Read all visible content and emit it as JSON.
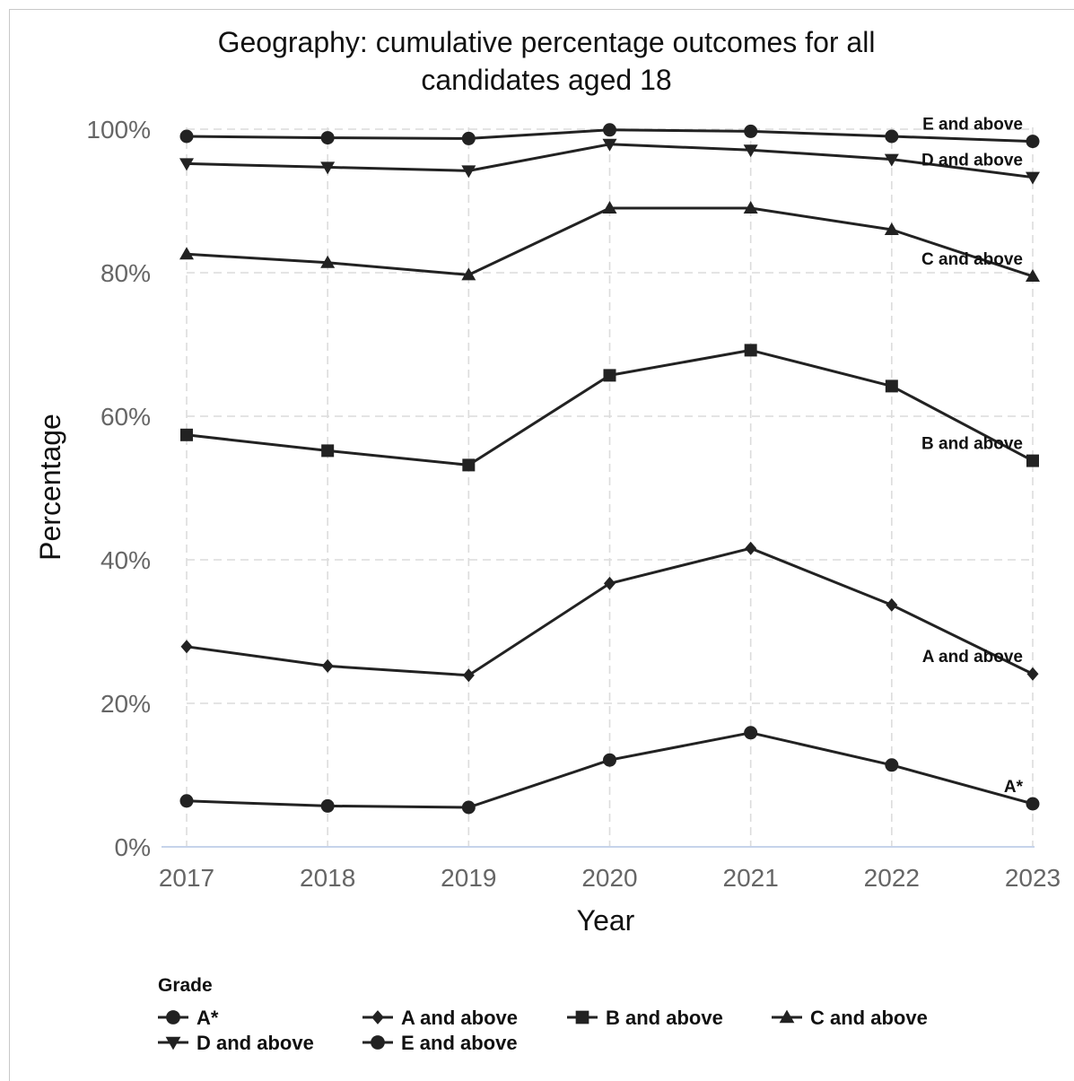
{
  "chart_data": {
    "type": "line",
    "title": "Geography: cumulative percentage outcomes for all candidates aged 18",
    "title_lines": [
      "Geography: cumulative percentage outcomes for all",
      "candidates aged 18"
    ],
    "xlabel": "Year",
    "ylabel": "Percentage",
    "x": [
      "2017",
      "2018",
      "2019",
      "2020",
      "2021",
      "2022",
      "2023"
    ],
    "ylim": [
      0,
      100
    ],
    "yticks": [
      0,
      20,
      40,
      60,
      80,
      100
    ],
    "ytick_labels": [
      "0%",
      "20%",
      "40%",
      "60%",
      "80%",
      "100%"
    ],
    "grid": true,
    "legend_title": "Grade",
    "legend_position": "bottom",
    "series": [
      {
        "name": "A*",
        "marker": "circle",
        "values": [
          6.4,
          5.7,
          5.5,
          12.1,
          15.9,
          11.4,
          6.0
        ]
      },
      {
        "name": "A and above",
        "marker": "diamond",
        "values": [
          27.9,
          25.2,
          23.9,
          36.7,
          41.6,
          33.7,
          24.1
        ]
      },
      {
        "name": "B and above",
        "marker": "square",
        "values": [
          57.4,
          55.2,
          53.2,
          65.7,
          69.2,
          64.2,
          53.8
        ]
      },
      {
        "name": "C and above",
        "marker": "triangle-up",
        "values": [
          82.6,
          81.4,
          79.7,
          89.0,
          89.0,
          86.0,
          79.5
        ]
      },
      {
        "name": "D and above",
        "marker": "triangle-down",
        "values": [
          95.2,
          94.7,
          94.2,
          97.9,
          97.1,
          95.8,
          93.3
        ]
      },
      {
        "name": "E and above",
        "marker": "circle",
        "values": [
          99.0,
          98.8,
          98.7,
          99.9,
          99.7,
          99.0,
          98.3
        ]
      }
    ]
  }
}
